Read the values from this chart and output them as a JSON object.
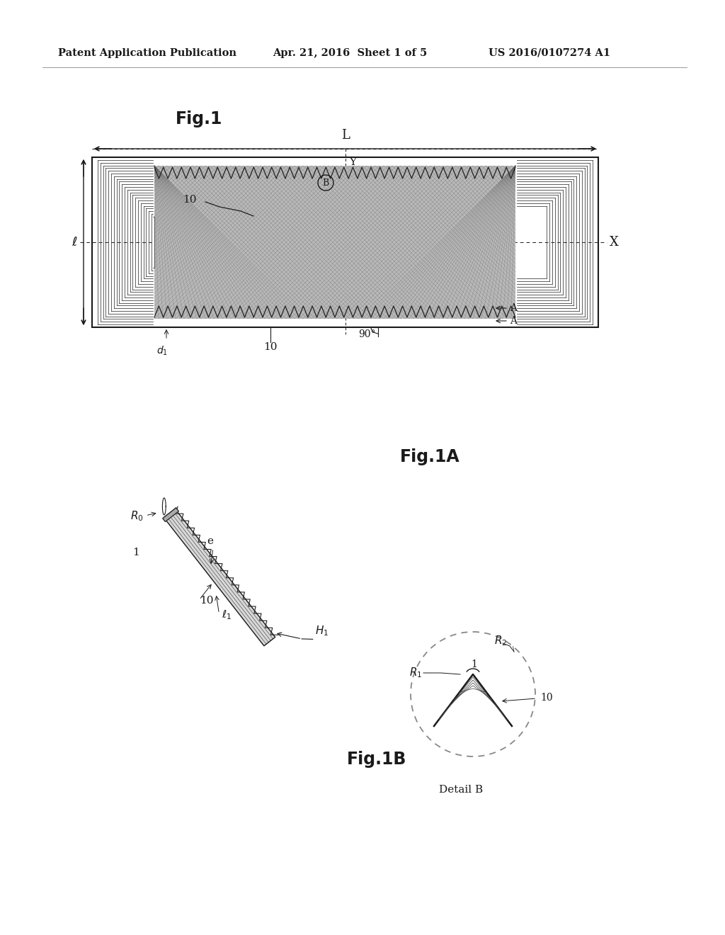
{
  "bg_color": "#ffffff",
  "header_left": "Patent Application Publication",
  "header_mid": "Apr. 21, 2016  Sheet 1 of 5",
  "header_right": "US 2016/0107274 A1",
  "fig1_title": "Fig.1",
  "fig1a_title": "Fig.1A",
  "fig1b_title": "Fig.1B",
  "detail_b_label": "Detail B",
  "text_color": "#1a1a1a",
  "line_color": "#1a1a1a",
  "gray_fill": "#bbbbbb",
  "dark_gray": "#555555",
  "med_gray": "#888888"
}
